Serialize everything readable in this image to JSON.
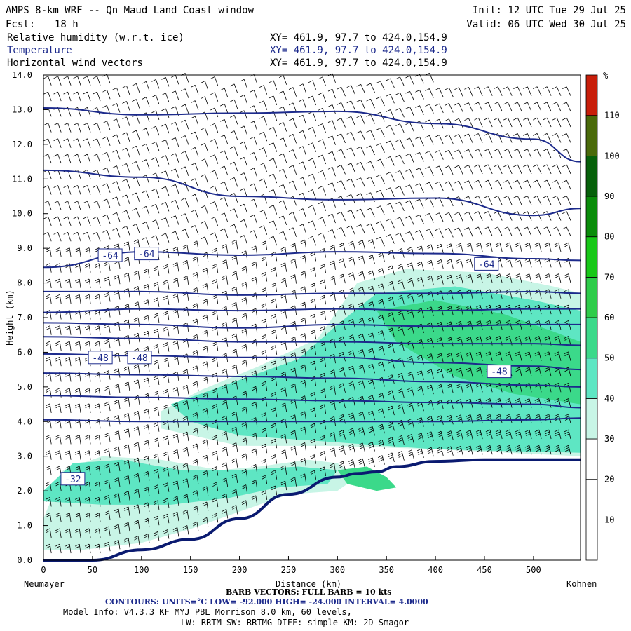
{
  "header": {
    "title": "AMPS 8-km WRF -- Qn Maud Land Coast window",
    "fcst_label": "Fcst:",
    "fcst_value": "18 h",
    "init": "Init: 12 UTC Tue 29 Jul 25",
    "valid": "Valid: 06 UTC Wed 30 Jul 25",
    "fields": [
      {
        "name": "Relative humidity (w.r.t. ice)",
        "xy": "XY= 461.9, 97.7 to 424.0,154.9"
      },
      {
        "name": "Temperature",
        "xy": "XY= 461.9, 97.7 to 424.0,154.9"
      },
      {
        "name": "Horizontal wind vectors",
        "xy": "XY= 461.9, 97.7 to 424.0,154.9"
      }
    ]
  },
  "colors": {
    "contour": "#1c2a8c",
    "terrain": "#0a1a70",
    "barb": "#000000"
  },
  "chart_data": {
    "type": "heatmap",
    "ylabel": "Height (km)",
    "xlabel": "Distance (km)",
    "x_left_label": "Neumayer",
    "x_right_label": "Kohnen",
    "xlim": [
      0,
      548
    ],
    "ylim": [
      0,
      14
    ],
    "x_ticks": [
      "0",
      "50",
      "100",
      "150",
      "200",
      "250",
      "300",
      "350",
      "400",
      "450",
      "500"
    ],
    "y_ticks": [
      "0.0",
      "1.0",
      "2.0",
      "3.0",
      "4.0",
      "5.0",
      "6.0",
      "7.0",
      "8.0",
      "9.0",
      "10.0",
      "11.0",
      "12.0",
      "13.0",
      "14.0"
    ],
    "colorbar": {
      "unit": "%",
      "levels": [
        "10",
        "20",
        "30",
        "40",
        "50",
        "60",
        "70",
        "80",
        "90",
        "100",
        "110"
      ],
      "colors": [
        "#ffffff",
        "#ffffff",
        "#ffffff",
        "#c8f5e6",
        "#5ee6c3",
        "#3bd98a",
        "#2ecc4a",
        "#18c818",
        "#0a8c0a",
        "#06600a",
        "#4a6a0a",
        "#c81e0a"
      ]
    },
    "contour_labels": [
      {
        "text": "-64",
        "x": 68,
        "y": 8.8
      },
      {
        "text": "-64",
        "x": 105,
        "y": 8.85
      },
      {
        "text": "-64",
        "x": 452,
        "y": 8.55
      },
      {
        "text": "-48",
        "x": 58,
        "y": 5.85
      },
      {
        "text": "-48",
        "x": 98,
        "y": 5.85
      },
      {
        "text": "-48",
        "x": 465,
        "y": 5.45
      },
      {
        "text": "-32",
        "x": 30,
        "y": 2.35
      }
    ],
    "temperature_isotherms_height_km": [
      {
        "x": [
          0,
          100,
          200,
          300,
          400,
          500,
          548
        ],
        "y": [
          13.05,
          12.85,
          12.9,
          12.95,
          12.6,
          12.15,
          11.5
        ]
      },
      {
        "x": [
          0,
          100,
          200,
          300,
          400,
          500,
          548
        ],
        "y": [
          11.25,
          11.05,
          10.5,
          10.4,
          10.45,
          9.95,
          10.15
        ]
      },
      {
        "x": [
          0,
          100,
          200,
          300,
          400,
          500,
          548
        ],
        "y": [
          8.45,
          8.9,
          8.8,
          8.9,
          8.85,
          8.7,
          8.65
        ]
      },
      {
        "x": [
          0,
          100,
          200,
          300,
          400,
          500,
          548
        ],
        "y": [
          7.75,
          7.75,
          7.65,
          7.7,
          7.7,
          7.75,
          7.7
        ]
      },
      {
        "x": [
          0,
          100,
          200,
          300,
          400,
          500,
          548
        ],
        "y": [
          7.15,
          7.25,
          7.2,
          7.25,
          7.2,
          7.25,
          7.25
        ]
      },
      {
        "x": [
          0,
          100,
          200,
          300,
          400,
          500,
          548
        ],
        "y": [
          6.85,
          6.8,
          6.7,
          6.8,
          6.75,
          6.8,
          6.8
        ]
      },
      {
        "x": [
          0,
          100,
          200,
          300,
          400,
          500,
          548
        ],
        "y": [
          6.45,
          6.4,
          6.3,
          6.3,
          6.25,
          6.25,
          6.2
        ]
      },
      {
        "x": [
          0,
          100,
          200,
          300,
          400,
          500,
          548
        ],
        "y": [
          5.95,
          5.9,
          5.85,
          5.85,
          5.7,
          5.6,
          5.5
        ]
      },
      {
        "x": [
          0,
          100,
          200,
          300,
          400,
          500,
          548
        ],
        "y": [
          5.4,
          5.35,
          5.3,
          5.25,
          5.15,
          5.05,
          5.0
        ]
      },
      {
        "x": [
          0,
          100,
          200,
          300,
          400,
          500,
          548
        ],
        "y": [
          4.75,
          4.7,
          4.65,
          4.6,
          4.55,
          4.5,
          4.4
        ]
      },
      {
        "x": [
          0,
          100,
          200,
          300,
          400,
          500,
          548
        ],
        "y": [
          4.05,
          4.0,
          4.0,
          4.0,
          4.0,
          4.05,
          4.1
        ]
      }
    ],
    "terrain_height_km": {
      "x": [
        0,
        50,
        100,
        150,
        200,
        250,
        300,
        320,
        340,
        360,
        400,
        450,
        500,
        548
      ],
      "y": [
        0.0,
        0.0,
        0.3,
        0.6,
        1.2,
        1.9,
        2.4,
        2.5,
        2.55,
        2.7,
        2.85,
        2.9,
        2.9,
        2.9
      ]
    }
  },
  "footer": {
    "barb_line": "BARB VECTORS: FULL BARB = 10 kts",
    "contours_line": "CONTOURS: UNITS=°C LOW= -92.000 HIGH= -24.000 INTERVAL= 4.0000",
    "model_line": "Model Info: V4.3.3 KF MYJ PBL Morrison 8.0 km, 60 levels,",
    "lw_line": "LW: RRTM SW: RRTMG DIFF: simple KM: 2D Smagor"
  }
}
